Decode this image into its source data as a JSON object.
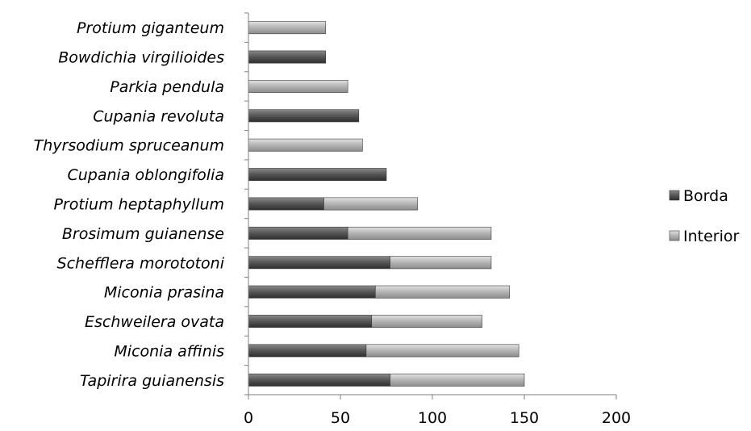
{
  "chart_data": {
    "type": "bar",
    "orientation": "horizontal",
    "stacked": true,
    "categories": [
      "Tapirira guianensis",
      "Miconia affinis",
      "Eschweilera ovata",
      "Miconia prasina",
      "Schefflera morototoni",
      "Brosimum guianense",
      "Protium heptaphyllum",
      "Cupania oblongifolia",
      "Thyrsodium spruceanum",
      "Cupania revoluta",
      "Parkia pendula",
      "Bowdichia virgilioides",
      "Protium giganteum"
    ],
    "series": [
      {
        "name": "Borda",
        "color": "#4d4d4d",
        "values": [
          77,
          64,
          67,
          69,
          77,
          54,
          41,
          75,
          0,
          60,
          0,
          42,
          0
        ]
      },
      {
        "name": "Interior",
        "color": "#a6a6a6",
        "values": [
          73,
          83,
          60,
          73,
          55,
          78,
          51,
          0,
          62,
          0,
          54,
          0,
          42
        ]
      }
    ],
    "xlim": [
      0,
      200
    ],
    "xticks": [
      "0",
      "50",
      "100",
      "150",
      "200"
    ],
    "grid": false,
    "legend_position": "right"
  }
}
